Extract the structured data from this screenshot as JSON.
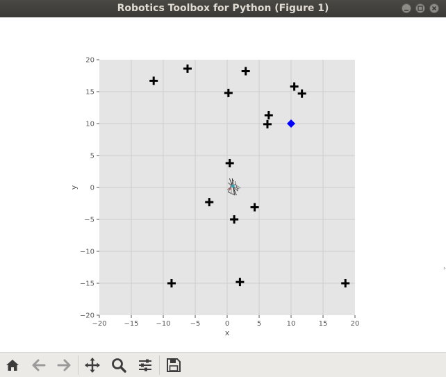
{
  "window": {
    "title": "Robotics Toolbox for Python (Figure 1)",
    "buttons": [
      "minimize",
      "maximize",
      "close"
    ]
  },
  "chart_data": {
    "type": "scatter",
    "xlabel": "x",
    "ylabel": "y",
    "xlim": [
      -20,
      20
    ],
    "ylim": [
      -20,
      20
    ],
    "xticks": [
      -20,
      -15,
      -10,
      -5,
      0,
      5,
      10,
      15,
      20
    ],
    "yticks": [
      -20,
      -15,
      -10,
      -5,
      0,
      5,
      10,
      15,
      20
    ],
    "grid": true,
    "background": "#e5e5e5",
    "series": [
      {
        "marker": "plus",
        "color": "#000000",
        "points": [
          [
            -11.5,
            16.7
          ],
          [
            -6.2,
            18.6
          ],
          [
            2.9,
            18.2
          ],
          [
            0.2,
            14.8
          ],
          [
            10.5,
            15.8
          ],
          [
            11.7,
            14.7
          ],
          [
            6.5,
            11.3
          ],
          [
            6.3,
            9.9
          ],
          [
            0.4,
            3.8
          ],
          [
            -2.8,
            -2.3
          ],
          [
            4.3,
            -3.1
          ],
          [
            1.1,
            -5.0
          ],
          [
            -8.7,
            -15.0
          ],
          [
            2.0,
            -14.8
          ],
          [
            18.5,
            -15.0
          ]
        ]
      },
      {
        "marker": "diamond",
        "color": "#0000ff",
        "points": [
          [
            10.0,
            10.0
          ]
        ]
      }
    ],
    "robot": {
      "x": 0.8,
      "y": 0.1
    }
  },
  "toolbar": {
    "tools": [
      "home-icon",
      "back-arrow-icon",
      "forward-arrow-icon",
      "pan-icon",
      "zoom-icon",
      "subplots-icon",
      "save-icon"
    ]
  }
}
